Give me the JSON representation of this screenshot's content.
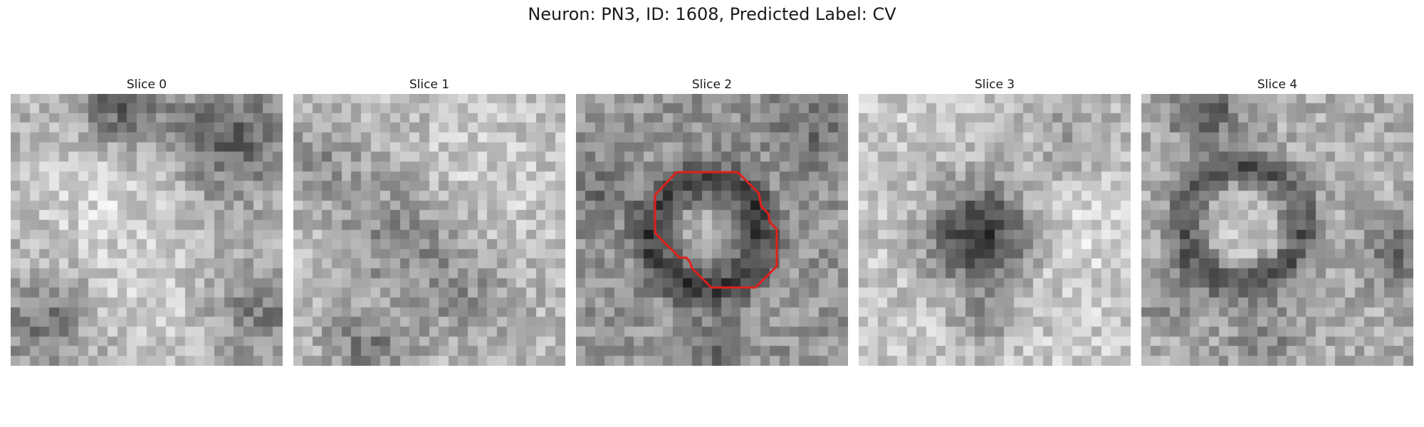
{
  "figure": {
    "title": "Neuron: PN3, ID: 1608, Predicted Label: CV"
  },
  "slices": [
    {
      "title": "Slice 0"
    },
    {
      "title": "Slice 1"
    },
    {
      "title": "Slice 2"
    },
    {
      "title": "Slice 3"
    },
    {
      "title": "Slice 4"
    }
  ],
  "image": {
    "colormap": "grayscale",
    "grid_size": 28,
    "contour_slice": 2,
    "contour_color": "#e0201c"
  }
}
